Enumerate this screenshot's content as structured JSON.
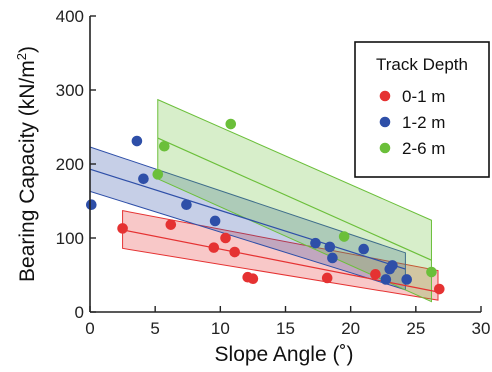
{
  "chart_data": {
    "type": "scatter",
    "xlabel": "Slope Angle (˚)",
    "ylabel_main": "Bearing Capacity (kN/m",
    "ylabel_sup": "2",
    "ylabel_end": ")",
    "xlim": [
      0,
      30
    ],
    "ylim": [
      0,
      400
    ],
    "x_ticks": [
      0,
      5,
      10,
      15,
      20,
      25,
      30
    ],
    "y_ticks": [
      0,
      100,
      200,
      300,
      400
    ],
    "grid": false,
    "legend_position": "top-right",
    "legend_title": "Track Depth",
    "series": [
      {
        "name": "0-1 m",
        "color": "#e53232",
        "points": [
          [
            2.5,
            113
          ],
          [
            6.2,
            118
          ],
          [
            9.5,
            87
          ],
          [
            10.4,
            100
          ],
          [
            11.1,
            81
          ],
          [
            12.1,
            47
          ],
          [
            12.5,
            45
          ],
          [
            18.2,
            46
          ],
          [
            21.9,
            51
          ],
          [
            26.8,
            31
          ]
        ],
        "fit": [
          [
            2.5,
            111
          ],
          [
            26.7,
            27
          ]
        ],
        "band_upper": [
          [
            2.5,
            137
          ],
          [
            26.7,
            56
          ]
        ],
        "band_lower": [
          [
            2.5,
            86
          ],
          [
            26.7,
            16
          ]
        ]
      },
      {
        "name": "1-2 m",
        "color": "#2e4fa8",
        "points": [
          [
            0.1,
            145
          ],
          [
            3.6,
            231
          ],
          [
            4.1,
            180
          ],
          [
            7.4,
            145
          ],
          [
            9.6,
            123
          ],
          [
            17.3,
            93
          ],
          [
            18.4,
            88
          ],
          [
            18.6,
            73
          ],
          [
            21.0,
            85
          ],
          [
            22.7,
            44
          ],
          [
            23.0,
            58
          ],
          [
            23.2,
            63
          ],
          [
            24.3,
            44
          ]
        ],
        "fit": [
          [
            0,
            193
          ],
          [
            24.2,
            58
          ]
        ],
        "band_upper": [
          [
            0,
            223
          ],
          [
            24.2,
            80
          ]
        ],
        "band_lower": [
          [
            0,
            163
          ],
          [
            24.2,
            30
          ]
        ]
      },
      {
        "name": "2-6 m",
        "color": "#6bbf3a",
        "points": [
          [
            5.2,
            186
          ],
          [
            5.7,
            224
          ],
          [
            10.8,
            254
          ],
          [
            19.5,
            102
          ],
          [
            26.2,
            54
          ]
        ],
        "fit": [
          [
            5.2,
            235
          ],
          [
            26.2,
            70
          ]
        ],
        "band_upper": [
          [
            5.2,
            287
          ],
          [
            26.2,
            124
          ]
        ],
        "band_lower": [
          [
            5.2,
            180
          ],
          [
            26.2,
            14
          ]
        ]
      }
    ]
  }
}
